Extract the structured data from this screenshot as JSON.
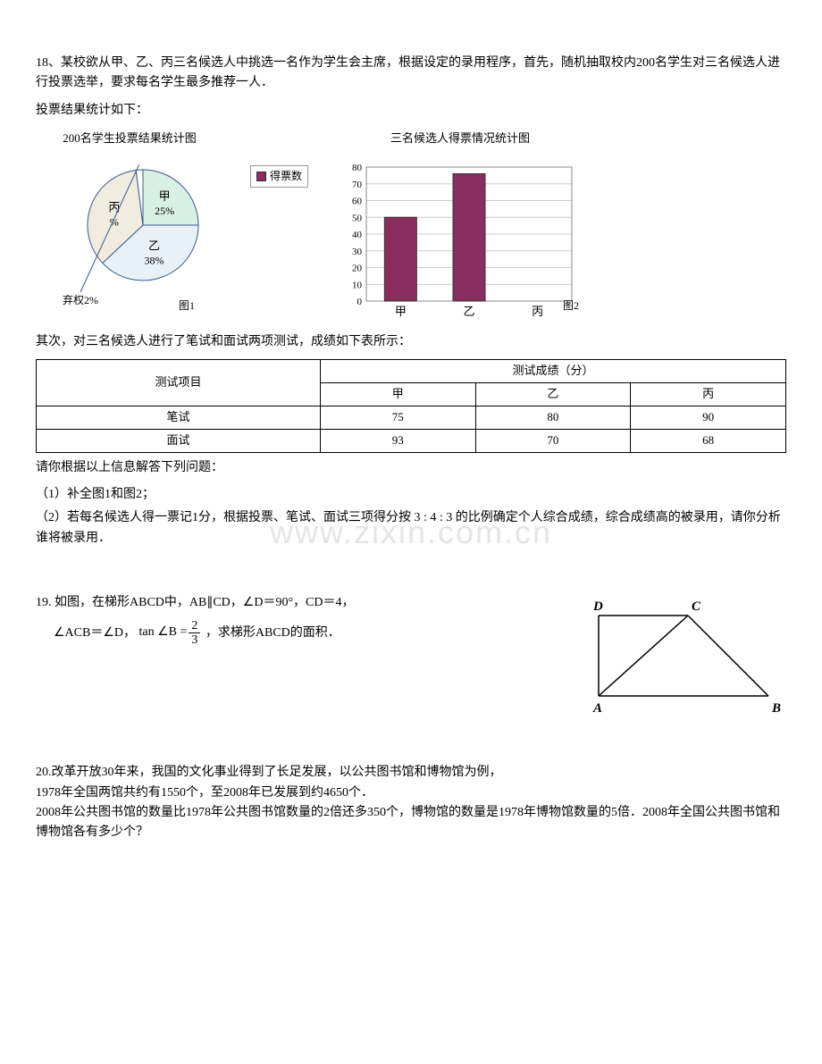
{
  "q18": {
    "intro1": "18、某校欲从甲、乙、丙三名候选人中挑选一名作为学生会主席，根据设定的录用程序，首先，随机抽取校内200名学生对三名候选人进行投票选举，要求每名学生最多推荐一人．",
    "intro2": "投票结果统计如下：",
    "pie": {
      "title": "200名学生投票结果统计图",
      "slices": [
        {
          "label": "甲",
          "pct_label": "25%",
          "pct": 25,
          "color": "#d9f0e4"
        },
        {
          "label": "乙",
          "pct_label": "38%",
          "pct": 38,
          "color": "#e8f0f8"
        },
        {
          "label": "丙",
          "pct_label": "%",
          "pct": 35,
          "color": "#f0ece0"
        },
        {
          "label": "弃权2%",
          "pct_label": "",
          "pct": 2,
          "color": "#ffffff"
        }
      ],
      "center_blank": "%",
      "fig_label": "图1"
    },
    "bar": {
      "title": "三名候选人得票情况统计图",
      "ymax": 80,
      "ytick": 10,
      "categories": [
        "甲",
        "乙",
        "丙"
      ],
      "values": [
        50,
        76,
        null
      ],
      "bar_color": "#8b2e5f",
      "grid_color": "#cccccc",
      "legend": "得票数",
      "fig_label": "图2"
    },
    "table_intro": "其次，对三名候选人进行了笔试和面试两项测试，成绩如下表所示：",
    "table": {
      "header_left": "测试项目",
      "header_merged": "测试成绩（分）",
      "cols": [
        "甲",
        "乙",
        "丙"
      ],
      "rows": [
        {
          "item": "笔试",
          "vals": [
            "75",
            "80",
            "90"
          ]
        },
        {
          "item": "面试",
          "vals": [
            "93",
            "70",
            "68"
          ]
        }
      ]
    },
    "after": "请你根据以上信息解答下列问题：",
    "sub1": "（1）补全图1和图2；",
    "sub2": "（2）若每名候选人得一票记1分，根据投票、笔试、面试三项得分按 3 : 4 : 3 的比例确定个人综合成绩，综合成绩高的被录用，请你分析谁将被录用．"
  },
  "q19": {
    "line1": "19. 如图，在梯形ABCD中，AB∥CD，∠D＝90°，CD＝4，",
    "line2_pre": "∠ACB＝∠D，",
    "tan_lhs": "tan ∠B = ",
    "frac_num": "2",
    "frac_den": "3",
    "line2_post": "，求梯形ABCD的面积．",
    "labels": {
      "A": "A",
      "B": "B",
      "C": "C",
      "D": "D"
    }
  },
  "q20": {
    "l1": "20.改革开放30年来，我国的文化事业得到了长足发展，以公共图书馆和博物馆为例，",
    "l2": "1978年全国两馆共约有1550个，至2008年已发展到约4650个．",
    "l3": "2008年公共图书馆的数量比1978年公共图书馆数量的2倍还多350个，博物馆的数量是1978年博物馆数量的5倍．2008年全国公共图书馆和博物馆各有多少个？"
  },
  "watermark": "www.zixin.com.cn"
}
